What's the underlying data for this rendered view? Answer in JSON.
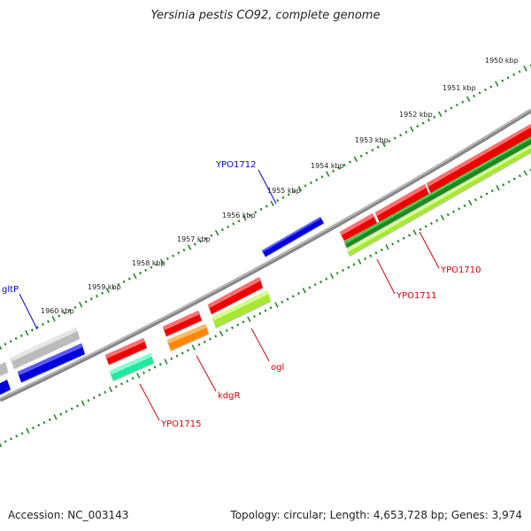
{
  "title": "Yersinia pestis CO92, complete genome",
  "footer": {
    "accession": "Accession: NC_003143",
    "topology": "Topology: circular; Length: 4,653,728 bp; Genes: 3,974"
  },
  "scale_labels": [
    "1950 kbp",
    "1951 kbp",
    "1952 kbp",
    "1953 kbp",
    "1954 kbp",
    "1955 kbp",
    "1956 kbp",
    "1957 kbp",
    "1958 kbp",
    "1959 kbp",
    "1960 kbp"
  ],
  "colors": {
    "red": "#ee0000",
    "blue": "#0000dd",
    "gray": "#bbbbbb",
    "dark_green": "#1a8a1a",
    "light_green": "#a8e830",
    "orange": "#ff8800",
    "teal": "#22e8a0",
    "tick": "#228822"
  },
  "genes": [
    {
      "name": "YPO1712",
      "color": "blue"
    },
    {
      "name": "YPO1710",
      "color": "red"
    },
    {
      "name": "YPO1711",
      "color": "red"
    },
    {
      "name": "ogl",
      "color": "light_green"
    },
    {
      "name": "kdgR",
      "color": "orange"
    },
    {
      "name": "YPO1715",
      "color": "teal"
    },
    {
      "name": "gltP",
      "color": "blue"
    }
  ]
}
